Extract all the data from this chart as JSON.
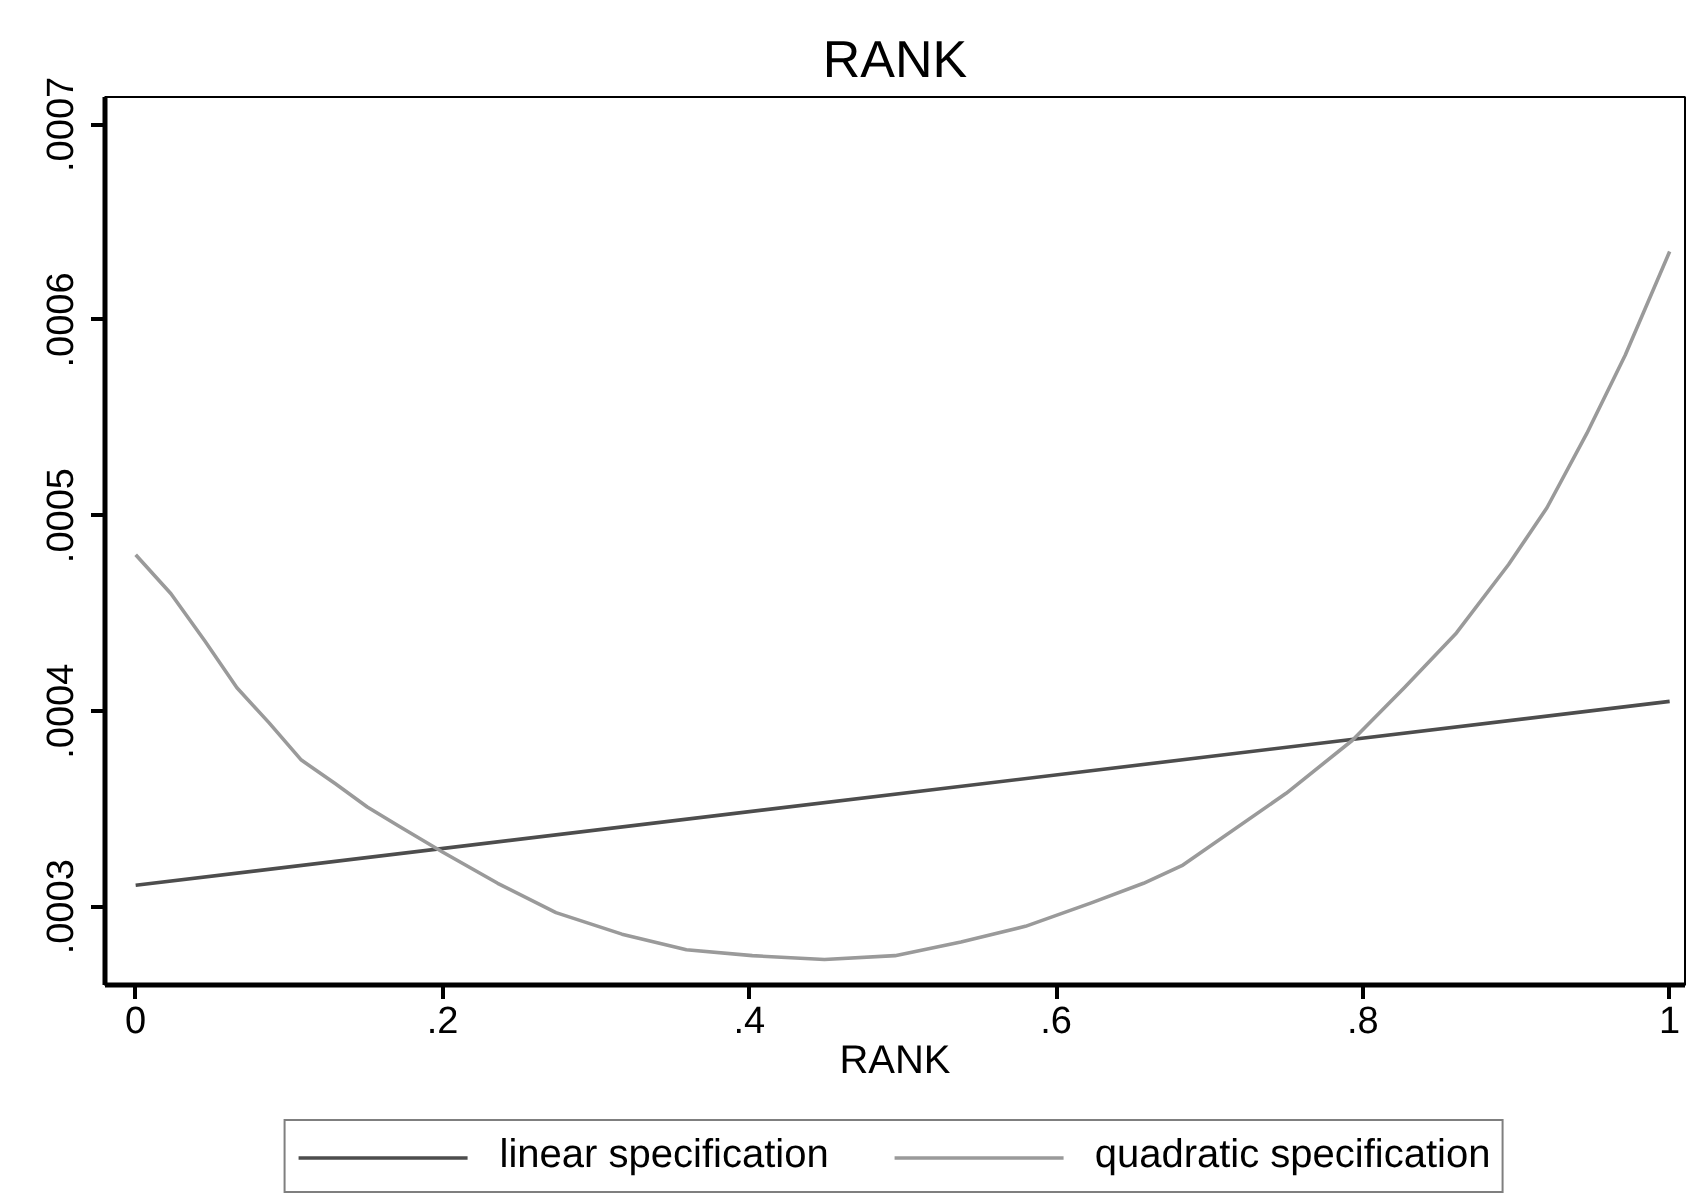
{
  "chart_data": {
    "type": "line",
    "title": "RANK",
    "xlabel": "RANK",
    "xlim": [
      -0.02,
      1.01
    ],
    "xticks": [
      0,
      {
        "value": 0.2,
        "label": ".2"
      },
      {
        "value": 0.4,
        "label": ".4"
      },
      {
        "value": 0.6,
        "label": ".6"
      },
      {
        "value": 0.8,
        "label": ".8"
      },
      1
    ],
    "ylim": [
      0.00026,
      0.000714
    ],
    "yticks": [
      {
        "value": 0.0003,
        "label": ".0003"
      },
      {
        "value": 0.0004,
        "label": ".0004"
      },
      {
        "value": 0.0005,
        "label": ".0005"
      },
      {
        "value": 0.0006,
        "label": ".0006"
      },
      {
        "value": 0.0007,
        "label": ".0007"
      }
    ],
    "grid": false,
    "legend": "bottom",
    "series": [
      {
        "name": "linear specification",
        "color": "#4d4d4d",
        "x": [
          0,
          1
        ],
        "values": [
          0.000311,
          0.000405
        ]
      },
      {
        "name": "quadratic specification",
        "color": "#9a9a9a",
        "x": [
          0,
          0.023,
          0.045,
          0.066,
          0.087,
          0.108,
          0.13,
          0.151,
          0.172,
          0.2,
          0.236,
          0.274,
          0.317,
          0.359,
          0.402,
          0.449,
          0.495,
          0.538,
          0.58,
          0.623,
          0.657,
          0.682,
          0.75,
          0.793,
          0.827,
          0.861,
          0.895,
          0.92,
          0.946,
          0.971,
          1
        ],
        "values": [
          0.00048,
          0.00046,
          0.000436,
          0.000412,
          0.000394,
          0.000375,
          0.000363,
          0.000351,
          0.000341,
          0.000328,
          0.000312,
          0.000297,
          0.000286,
          0.000278,
          0.000275,
          0.000273,
          0.000275,
          0.000282,
          0.00029,
          0.000302,
          0.000312,
          0.000321,
          0.000358,
          0.000385,
          0.000412,
          0.00044,
          0.000475,
          0.000504,
          0.000542,
          0.000582,
          0.000635
        ]
      }
    ]
  }
}
